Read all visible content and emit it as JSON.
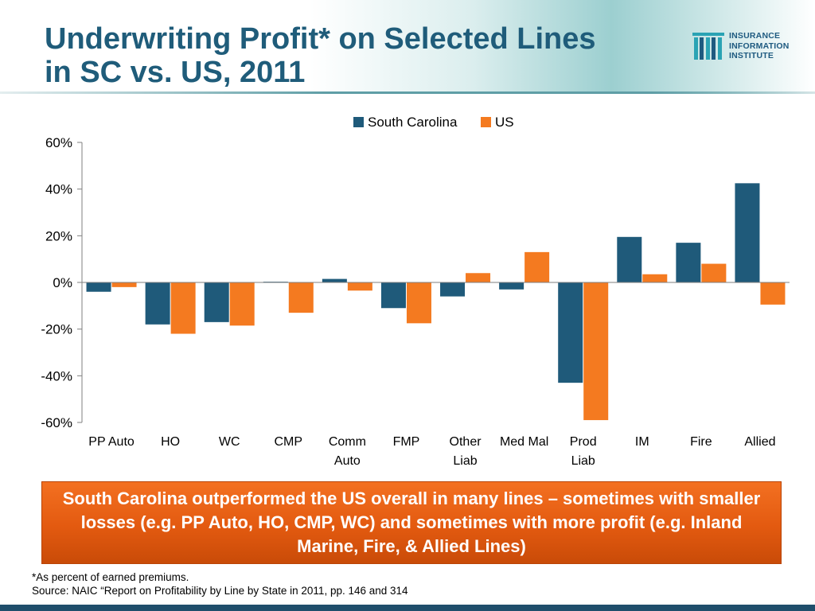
{
  "slide": {
    "title_line1": "Underwriting Profit* on Selected Lines",
    "title_line2": "in SC vs. US, 2011",
    "logo_lines": [
      "INSURANCE",
      "INFORMATION",
      "INSTITUTE"
    ],
    "callout": "South Carolina outperformed the US overall in many lines – sometimes with smaller losses (e.g. PP Auto, HO, CMP, WC) and sometimes with more profit (e.g. Inland Marine, Fire, & Allied Lines)",
    "footnote_line1": "*As percent of earned premiums.",
    "footnote_line2": "Source: NAIC “Report on Profitability by Line by State in 2011, pp. 146 and 314",
    "colors": {
      "title": "#1f5c7a",
      "south_carolina": "#1f5a7a",
      "us": "#f47a20",
      "callout": "#e35a10",
      "bottom_bar": "#1f4e6b"
    }
  },
  "chart_data": {
    "type": "bar",
    "categories": [
      "PP Auto",
      "HO",
      "WC",
      "CMP",
      "Comm Auto",
      "FMP",
      "Other Liab",
      "Med Mal",
      "Prod Liab",
      "IM",
      "Fire",
      "Allied"
    ],
    "category_labels": [
      [
        "PP Auto"
      ],
      [
        "HO"
      ],
      [
        "WC"
      ],
      [
        "CMP"
      ],
      [
        "Comm",
        "Auto"
      ],
      [
        "FMP"
      ],
      [
        "Other",
        "Liab"
      ],
      [
        "Med Mal"
      ],
      [
        "Prod",
        "Liab"
      ],
      [
        "IM"
      ],
      [
        "Fire"
      ],
      [
        "Allied"
      ]
    ],
    "series": [
      {
        "name": "South Carolina",
        "color": "#1f5a7a",
        "values": [
          -4,
          -18,
          -17,
          0.3,
          1.5,
          -11,
          -6,
          -3,
          -43,
          19.5,
          17,
          42.5
        ]
      },
      {
        "name": "US",
        "color": "#f47a20",
        "values": [
          -2,
          -22,
          -18.5,
          -13,
          -3.5,
          -17.5,
          4,
          13,
          -59,
          3.5,
          8,
          -9.5
        ]
      }
    ],
    "ylim": [
      -60,
      60
    ],
    "yticks": [
      60,
      40,
      20,
      0,
      -20,
      -40,
      -60
    ],
    "ytick_labels": [
      "60%",
      "40%",
      "20%",
      "0%",
      "-20%",
      "-40%",
      "-60%"
    ],
    "grid": false,
    "legend_position": "top-center"
  }
}
